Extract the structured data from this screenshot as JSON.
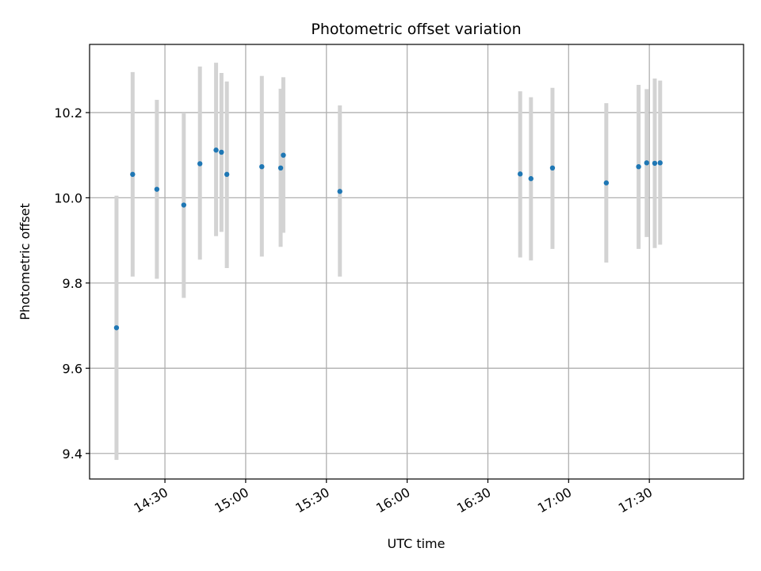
{
  "chart_data": {
    "type": "scatter",
    "title": "Photometric offset variation",
    "xlabel": "UTC time",
    "ylabel": "Photometric offset",
    "x_axis_kind": "time",
    "xlim": [
      "14:02",
      "18:05"
    ],
    "ylim": [
      9.34,
      10.36
    ],
    "x_ticks": [
      "14:30",
      "15:00",
      "15:30",
      "16:00",
      "16:30",
      "17:00",
      "17:30"
    ],
    "y_ticks": [
      9.4,
      9.6,
      9.8,
      10.0,
      10.2
    ],
    "y_tick_labels": [
      "9.4",
      "9.6",
      "9.8",
      "10.0",
      "10.2"
    ],
    "grid": true,
    "colors": {
      "point": "#1f77b4",
      "errorbar": "#d3d3d3",
      "grid": "#b0b0b0"
    },
    "points": [
      {
        "x": "14:12",
        "y": 9.695,
        "low": 9.385,
        "high": 10.005
      },
      {
        "x": "14:18",
        "y": 10.055,
        "low": 9.815,
        "high": 10.295
      },
      {
        "x": "14:27",
        "y": 10.02,
        "low": 9.81,
        "high": 10.23
      },
      {
        "x": "14:37",
        "y": 9.983,
        "low": 9.765,
        "high": 10.2
      },
      {
        "x": "14:43",
        "y": 10.08,
        "low": 9.855,
        "high": 10.308
      },
      {
        "x": "14:49",
        "y": 10.112,
        "low": 9.91,
        "high": 10.317
      },
      {
        "x": "14:51",
        "y": 10.107,
        "low": 9.92,
        "high": 10.293
      },
      {
        "x": "14:53",
        "y": 10.055,
        "low": 9.835,
        "high": 10.273
      },
      {
        "x": "15:06",
        "y": 10.073,
        "low": 9.862,
        "high": 10.286
      },
      {
        "x": "15:13",
        "y": 10.07,
        "low": 9.885,
        "high": 10.256
      },
      {
        "x": "15:14",
        "y": 10.1,
        "low": 9.918,
        "high": 10.283
      },
      {
        "x": "15:35",
        "y": 10.015,
        "low": 9.815,
        "high": 10.217
      },
      {
        "x": "16:42",
        "y": 10.056,
        "low": 9.86,
        "high": 10.25
      },
      {
        "x": "16:46",
        "y": 10.045,
        "low": 9.853,
        "high": 10.236
      },
      {
        "x": "16:54",
        "y": 10.07,
        "low": 9.88,
        "high": 10.258
      },
      {
        "x": "17:14",
        "y": 10.035,
        "low": 9.848,
        "high": 10.222
      },
      {
        "x": "17:26",
        "y": 10.073,
        "low": 9.88,
        "high": 10.265
      },
      {
        "x": "17:29",
        "y": 10.082,
        "low": 9.908,
        "high": 10.255
      },
      {
        "x": "17:32",
        "y": 10.081,
        "low": 9.882,
        "high": 10.28
      },
      {
        "x": "17:34",
        "y": 10.082,
        "low": 9.89,
        "high": 10.275
      }
    ]
  }
}
